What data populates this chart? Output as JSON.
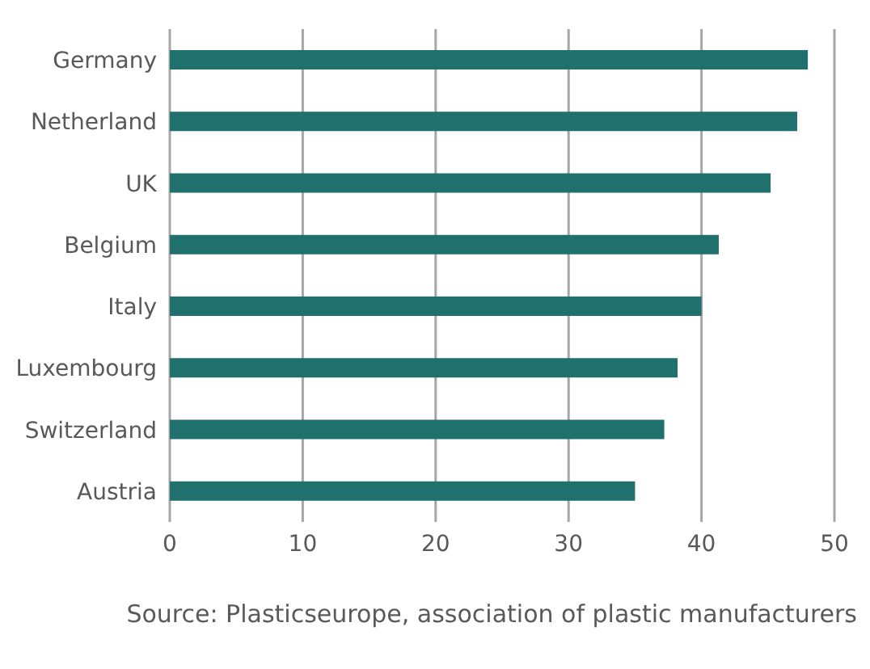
{
  "chart_data": {
    "type": "bar",
    "orientation": "horizontal",
    "categories": [
      "Germany",
      "Netherland",
      "UK",
      "Belgium",
      "Italy",
      "Luxembourg",
      "Switzerland",
      "Austria"
    ],
    "values": [
      48,
      47.2,
      45.2,
      41.3,
      40,
      38.2,
      37.2,
      35
    ],
    "color": "#20706e",
    "xlim": [
      0,
      50
    ],
    "xticks": [
      0,
      10,
      20,
      30,
      40,
      50
    ],
    "grid": "x",
    "annotations": [
      "Source: Plasticseurope, association of plastic manufacturers"
    ]
  }
}
